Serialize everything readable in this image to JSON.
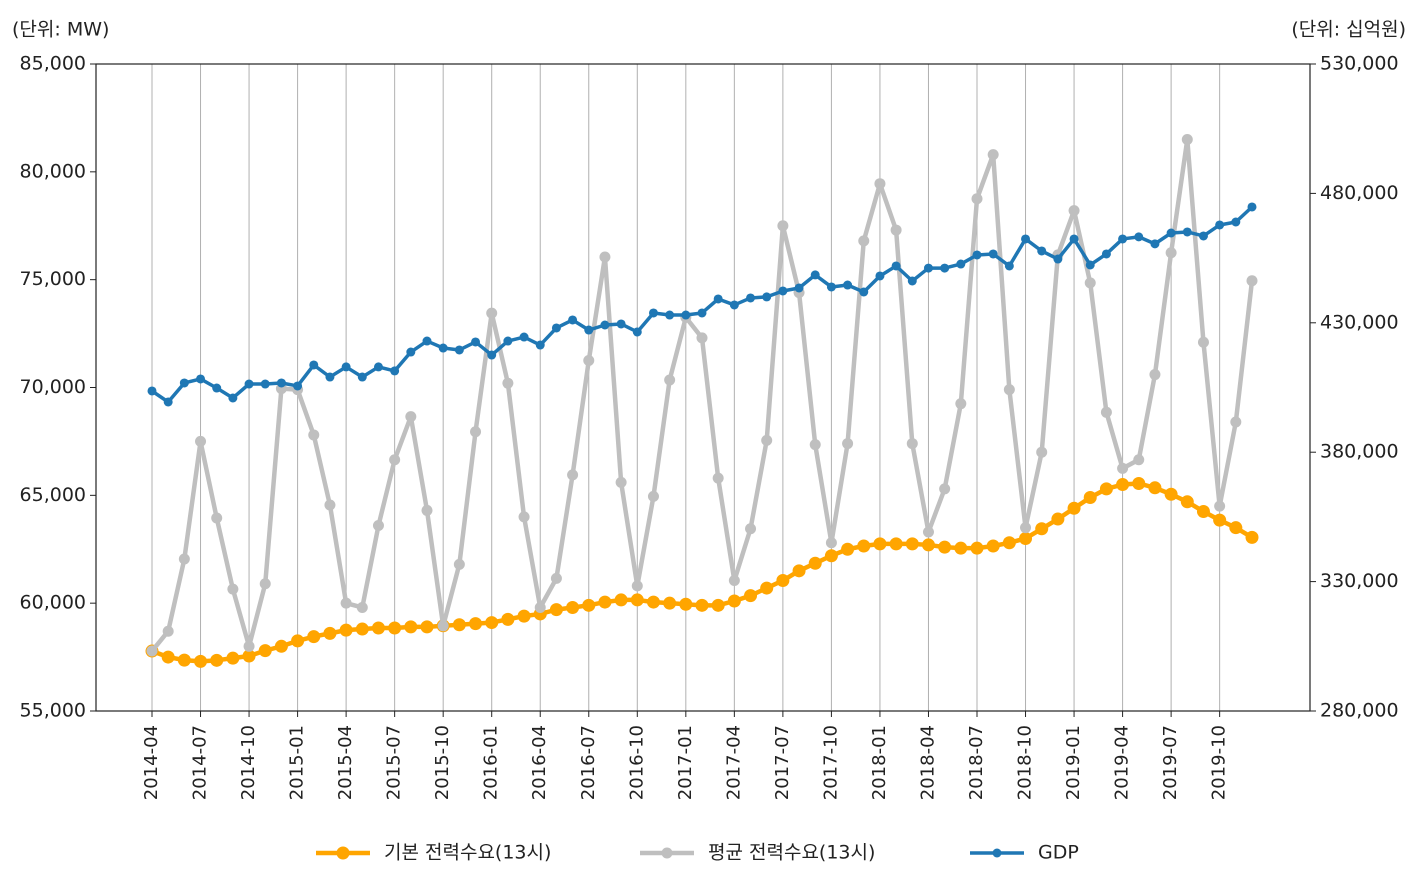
{
  "chart_data": {
    "type": "line",
    "y_label": "(단위: MW)",
    "y2_label": "(단위: 십억원)",
    "categories": [
      "2014-04",
      null,
      null,
      "2014-07",
      null,
      null,
      "2014-10",
      null,
      null,
      "2015-01",
      null,
      null,
      "2015-04",
      null,
      null,
      "2015-07",
      null,
      null,
      "2015-10",
      null,
      null,
      "2016-01",
      null,
      null,
      "2016-04",
      null,
      null,
      "2016-07",
      null,
      null,
      "2016-10",
      null,
      null,
      "2017-01",
      null,
      null,
      "2017-04",
      null,
      null,
      "2017-07",
      null,
      null,
      "2017-10",
      null,
      null,
      "2018-01",
      null,
      null,
      "2018-04",
      null,
      null,
      "2018-07",
      null,
      null,
      "2018-10",
      null,
      null,
      "2019-01",
      null,
      null,
      "2019-04",
      null,
      null,
      "2019-07",
      null,
      null,
      "2019-10",
      null,
      null
    ],
    "series": [
      {
        "name": "기본 전력수요(13시)",
        "color": "#ffa500",
        "values": [
          57780,
          57500,
          57360,
          57300,
          57350,
          57450,
          57550,
          57800,
          58000,
          58250,
          58450,
          58600,
          58750,
          58800,
          58850,
          58850,
          58900,
          58900,
          58950,
          59000,
          59050,
          59100,
          59250,
          59400,
          59500,
          59700,
          59800,
          59900,
          60050,
          60150,
          60150,
          60050,
          60000,
          59950,
          59900,
          59900,
          60100,
          60350,
          60700,
          61050,
          61500,
          61850,
          62200,
          62500,
          62650,
          62750,
          62750,
          62750,
          62700,
          62600,
          62550,
          62550,
          62650,
          62800,
          63000,
          63450,
          63900,
          64400,
          64900,
          65300,
          65500,
          65550,
          65350,
          65050,
          64700,
          64250,
          63850,
          63500,
          63050
        ]
      },
      {
        "name": "평균 전력수요(13시)",
        "color": "#bfbfbf",
        "values": [
          57780,
          58700,
          62050,
          67500,
          63950,
          60650,
          58000,
          60900,
          69950,
          69900,
          67800,
          64550,
          60000,
          59800,
          63600,
          66650,
          68650,
          64300,
          58950,
          61800,
          67950,
          73450,
          70200,
          64000,
          59800,
          61150,
          65950,
          71250,
          76050,
          65600,
          60800,
          64950,
          70350,
          73250,
          72300,
          65800,
          61050,
          63450,
          67550,
          77500,
          74400,
          67350,
          62800,
          67400,
          76800,
          79450,
          77300,
          67400,
          63300,
          65300,
          69250,
          78750,
          80800,
          69900,
          63500,
          67000,
          76150,
          78200,
          74850,
          68850,
          66250,
          66650,
          70600,
          76250,
          81500,
          72100,
          64500,
          68400,
          74950
        ]
      },
      {
        "name": "GDP",
        "color": "#1f77b4",
        "axis": "y2",
        "values": [
          403650,
          399400,
          406750,
          408300,
          404800,
          400950,
          406350,
          406350,
          406750,
          405600,
          413700,
          409050,
          412950,
          409050,
          412950,
          411400,
          418700,
          422950,
          420250,
          419500,
          422600,
          417550,
          422950,
          424500,
          421400,
          428000,
          431100,
          427200,
          429150,
          429550,
          426450,
          433800,
          433000,
          433000,
          433800,
          439200,
          436900,
          439600,
          440000,
          442300,
          443450,
          448500,
          443850,
          444600,
          441900,
          448100,
          451950,
          446150,
          451150,
          451150,
          452700,
          456200,
          456600,
          451950,
          462400,
          457750,
          454650,
          462400,
          452350,
          456600,
          462400,
          463200,
          460500,
          464700,
          465100,
          463550,
          467800,
          468950,
          474750
        ]
      }
    ],
    "ylim": [
      55000,
      85000
    ],
    "yticks": [
      {
        "value": 55000,
        "label": "55,000"
      },
      {
        "value": 60000,
        "label": "60,000"
      },
      {
        "value": 65000,
        "label": "65,000"
      },
      {
        "value": 70000,
        "label": "70,000"
      },
      {
        "value": 75000,
        "label": "75,000"
      },
      {
        "value": 80000,
        "label": "80,000"
      },
      {
        "value": 85000,
        "label": "85,000"
      }
    ],
    "y2lim": [
      280000,
      530000
    ],
    "y2ticks": [
      {
        "value": 280000,
        "label": "280,000"
      },
      {
        "value": 330000,
        "label": "330,000"
      },
      {
        "value": 380000,
        "label": "380,000"
      },
      {
        "value": 430000,
        "label": "430,000"
      },
      {
        "value": 480000,
        "label": "480,000"
      },
      {
        "value": 530000,
        "label": "530,000"
      }
    ],
    "grid": "x",
    "legend": "bottom"
  }
}
